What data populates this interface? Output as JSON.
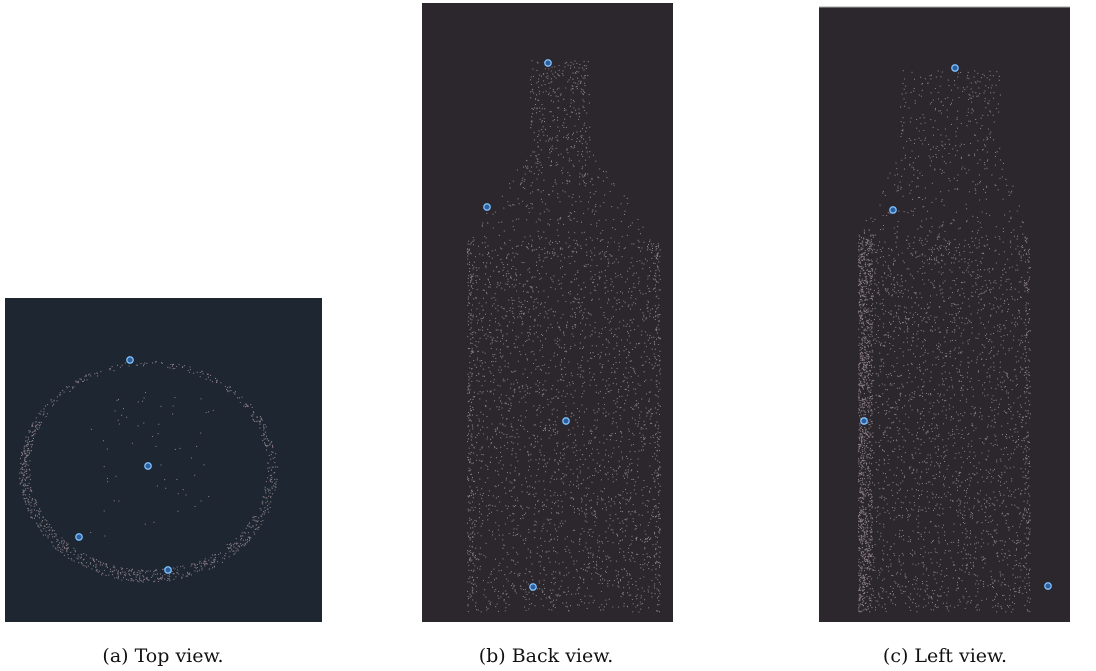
{
  "captions": [
    "(a) Top view.",
    "(b) Back view.",
    "(c) Left view."
  ]
}
